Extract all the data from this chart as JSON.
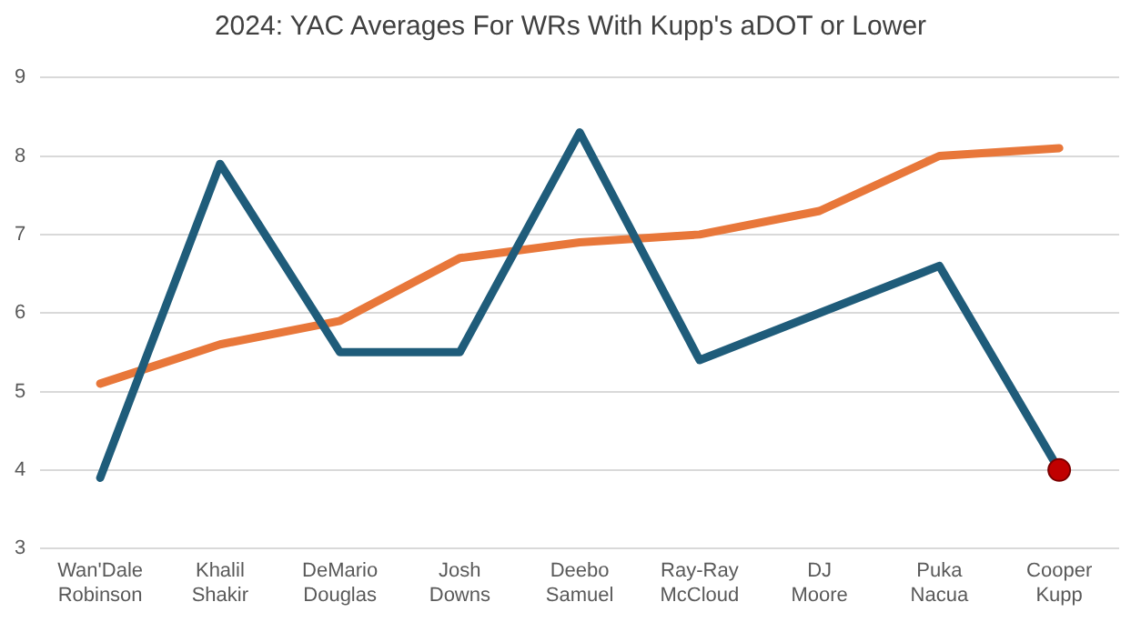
{
  "chart_data": {
    "type": "line",
    "title": "2024: YAC Averages For WRs With Kupp's aDOT or Lower",
    "categories": [
      "Wan'Dale Robinson",
      "Khalil Shakir",
      "DeMario Douglas",
      "Josh Downs",
      "Deebo Samuel",
      "Ray-Ray McCloud",
      "DJ Moore",
      "Puka Nacua",
      "Cooper Kupp"
    ],
    "series": [
      {
        "color": "#1f5c7a",
        "values": [
          3.9,
          7.9,
          5.5,
          5.5,
          8.3,
          5.4,
          6.0,
          6.6,
          4.0
        ]
      },
      {
        "color": "#e8773a",
        "values": [
          5.1,
          5.6,
          5.9,
          6.7,
          6.9,
          7.0,
          7.3,
          8.0,
          8.1
        ]
      },
      {
        "type": "scatter",
        "marker": "circle",
        "color": "#c00000",
        "x": [
          "Cooper Kupp"
        ],
        "values": [
          4.0
        ]
      }
    ],
    "ylim": [
      3,
      9
    ],
    "yticks": [
      3,
      4,
      5,
      6,
      7,
      8,
      9
    ],
    "grid": "y",
    "legend": false,
    "marker": "none"
  }
}
